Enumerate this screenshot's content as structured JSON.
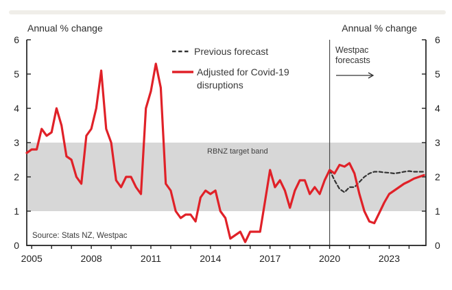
{
  "header": {
    "left_axis_title": "Annual % change",
    "right_axis_title": "Annual % change"
  },
  "legend": {
    "items": [
      {
        "label": "Previous forecast",
        "style": "dashed",
        "color": "#333333"
      },
      {
        "label": "Adjusted for Covid-19 disruptions",
        "style": "solid",
        "color": "#e02128"
      }
    ]
  },
  "annotations": {
    "forecast_line1": "Westpac",
    "forecast_line2": "forecasts",
    "forecast_arrow": "right-arrow",
    "source": "Source: Stats NZ, Westpac"
  },
  "chart_data": {
    "type": "line",
    "title": "Annual % change",
    "ylabel": "Annual % change",
    "x_range": [
      2004.75,
      2024.85
    ],
    "y_range": [
      0,
      6
    ],
    "y_ticks": [
      0,
      1,
      2,
      3,
      4,
      5,
      6
    ],
    "x_tick_years": [
      2005,
      2006,
      2007,
      2008,
      2009,
      2010,
      2011,
      2012,
      2013,
      2014,
      2015,
      2016,
      2017,
      2018,
      2019,
      2020,
      2021,
      2022,
      2023,
      2024
    ],
    "x_label_years": [
      2005,
      2008,
      2011,
      2014,
      2017,
      2020,
      2023
    ],
    "grid": false,
    "legend_position": "top-center",
    "forecast_start": 2020,
    "target_band": {
      "from": 1,
      "to": 3,
      "label": "RBNZ target band",
      "color": "#d7d7d7"
    },
    "series": [
      {
        "name": "Previous forecast",
        "style": "dashed",
        "color": "#333333",
        "x_start": 2020.0,
        "x_step": 0.25,
        "values": [
          2.2,
          1.9,
          1.65,
          1.55,
          1.7,
          1.7,
          1.85,
          2.0,
          2.1,
          2.15,
          2.15,
          2.13,
          2.12,
          2.1,
          2.12,
          2.15,
          2.17,
          2.15,
          2.15,
          2.15
        ]
      },
      {
        "name": "Adjusted for Covid-19 disruptions",
        "style": "solid",
        "color": "#e02128",
        "x_start": 2004.75,
        "x_step": 0.25,
        "values": [
          2.7,
          2.8,
          2.8,
          3.4,
          3.2,
          3.3,
          4.0,
          3.5,
          2.6,
          2.5,
          2.0,
          1.8,
          3.2,
          3.4,
          4.0,
          5.1,
          3.4,
          3.0,
          1.9,
          1.7,
          2.0,
          2.0,
          1.7,
          1.5,
          4.0,
          4.5,
          5.3,
          4.6,
          1.8,
          1.6,
          1.0,
          0.8,
          0.9,
          0.9,
          0.7,
          1.4,
          1.6,
          1.5,
          1.6,
          1.0,
          0.8,
          0.2,
          0.3,
          0.4,
          0.1,
          0.4,
          0.4,
          0.4,
          1.3,
          2.2,
          1.7,
          1.9,
          1.6,
          1.1,
          1.6,
          1.9,
          1.9,
          1.5,
          1.7,
          1.5,
          1.9,
          2.2,
          2.1,
          2.35,
          2.3,
          2.4,
          2.1,
          1.5,
          1.0,
          0.7,
          0.65,
          0.95,
          1.25,
          1.5,
          1.6,
          1.7,
          1.8,
          1.87,
          1.95,
          2.0,
          2.05
        ]
      }
    ]
  }
}
